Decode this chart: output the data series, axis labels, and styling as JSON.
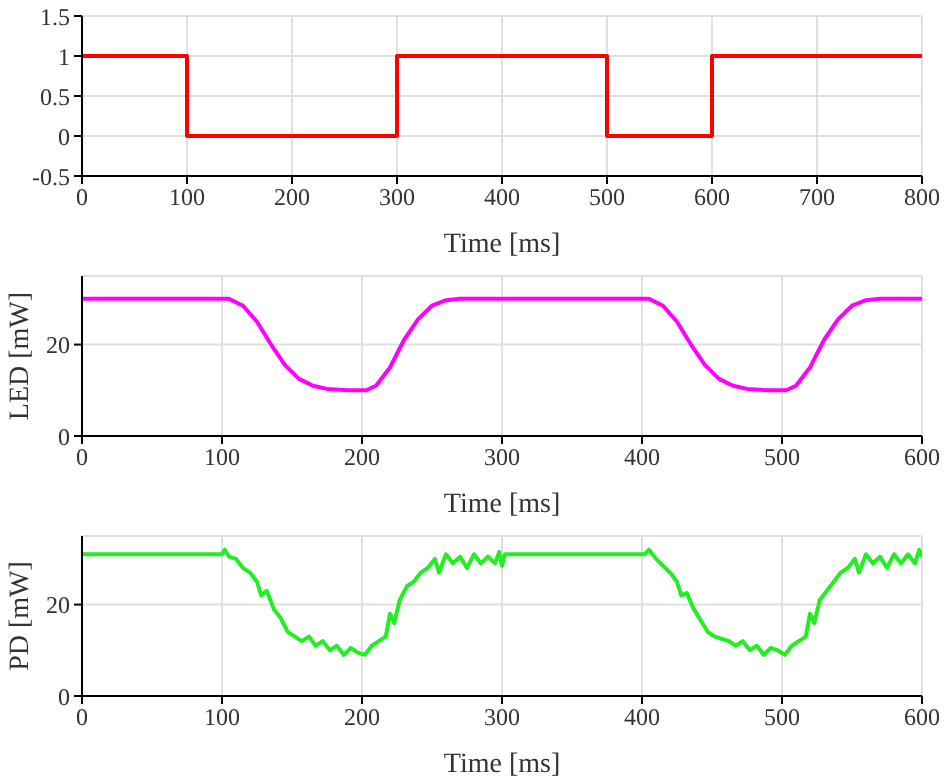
{
  "chart_data": [
    {
      "type": "line",
      "xlabel": "Time [ms]",
      "x": [
        0,
        100,
        100,
        300,
        300,
        500,
        500,
        600,
        600,
        800
      ],
      "series": [
        {
          "color": "#ff0000",
          "values": [
            1,
            1,
            0,
            0,
            1,
            1,
            0,
            0,
            1,
            1
          ]
        }
      ],
      "xlim": [
        0,
        800
      ],
      "xticks": [
        0,
        100,
        200,
        300,
        400,
        500,
        600,
        700,
        800
      ],
      "ylim": [
        -0.5,
        1.5
      ],
      "yticks": [
        -0.5,
        0,
        0.5,
        1,
        1.5
      ],
      "grid": true
    },
    {
      "type": "line",
      "xlabel": "Time [ms]",
      "ylabel": "LED [mW]",
      "x": [
        0,
        105,
        115,
        125,
        135,
        145,
        155,
        165,
        175,
        190,
        203,
        210,
        220,
        230,
        240,
        250,
        260,
        270,
        405,
        415,
        425,
        435,
        445,
        455,
        465,
        475,
        490,
        503,
        510,
        520,
        530,
        540,
        550,
        560,
        570,
        600
      ],
      "series": [
        {
          "color": "#ff00ff",
          "values": [
            30,
            30,
            28.5,
            25,
            20,
            15.5,
            12.5,
            11,
            10.3,
            10,
            10,
            11,
            15,
            21,
            25.5,
            28.5,
            29.7,
            30,
            30,
            28.5,
            25,
            20,
            15.5,
            12.5,
            11,
            10.3,
            10,
            10,
            11,
            15,
            21,
            25.5,
            28.5,
            29.7,
            30,
            30
          ]
        }
      ],
      "xlim": [
        0,
        600
      ],
      "xticks": [
        0,
        100,
        200,
        300,
        400,
        500,
        600
      ],
      "ylim": [
        0,
        35
      ],
      "yticks": [
        0,
        20
      ],
      "grid": true
    },
    {
      "type": "line",
      "xlabel": "Time [ms]",
      "ylabel": "PD [mW]",
      "x": [
        0,
        100,
        102,
        105,
        110,
        115,
        120,
        125,
        128,
        132,
        137,
        142,
        147,
        152,
        157,
        162,
        167,
        172,
        177,
        182,
        187,
        192,
        197,
        202,
        207,
        212,
        217,
        220,
        223,
        227,
        232,
        237,
        242,
        247,
        252,
        255,
        260,
        265,
        270,
        275,
        280,
        285,
        290,
        295,
        298,
        300,
        302,
        402,
        405,
        410,
        415,
        420,
        425,
        428,
        432,
        437,
        442,
        447,
        452,
        457,
        462,
        467,
        472,
        477,
        482,
        487,
        492,
        497,
        502,
        507,
        512,
        517,
        520,
        523,
        527,
        532,
        537,
        542,
        547,
        552,
        555,
        560,
        565,
        570,
        575,
        580,
        585,
        590,
        595,
        598,
        600
      ],
      "series": [
        {
          "color": "#22ee22",
          "values": [
            31,
            31,
            32,
            30.5,
            30,
            28,
            27,
            25,
            22,
            23,
            19,
            17,
            14,
            13,
            12,
            13,
            11,
            12,
            10,
            11,
            9,
            10.5,
            9.5,
            9,
            11,
            12,
            13,
            18,
            16,
            21,
            24,
            25,
            27,
            28,
            30,
            27,
            31,
            29,
            30.5,
            28,
            31,
            29,
            30.5,
            29,
            31.5,
            28.5,
            31,
            31,
            32,
            30,
            28.5,
            27,
            25,
            22,
            22.5,
            19,
            16.5,
            14,
            13,
            12.5,
            12,
            11,
            12,
            10,
            11,
            9,
            10.5,
            10,
            9,
            11,
            12,
            13,
            18,
            16,
            21,
            23,
            25,
            27,
            28,
            30,
            27,
            31,
            29,
            30.5,
            28,
            31,
            29,
            31,
            29,
            32,
            30.5
          ]
        }
      ],
      "xlim": [
        0,
        600
      ],
      "xticks": [
        0,
        100,
        200,
        300,
        400,
        500,
        600
      ],
      "ylim": [
        0,
        35
      ],
      "yticks": [
        0,
        20
      ],
      "grid": true
    }
  ]
}
